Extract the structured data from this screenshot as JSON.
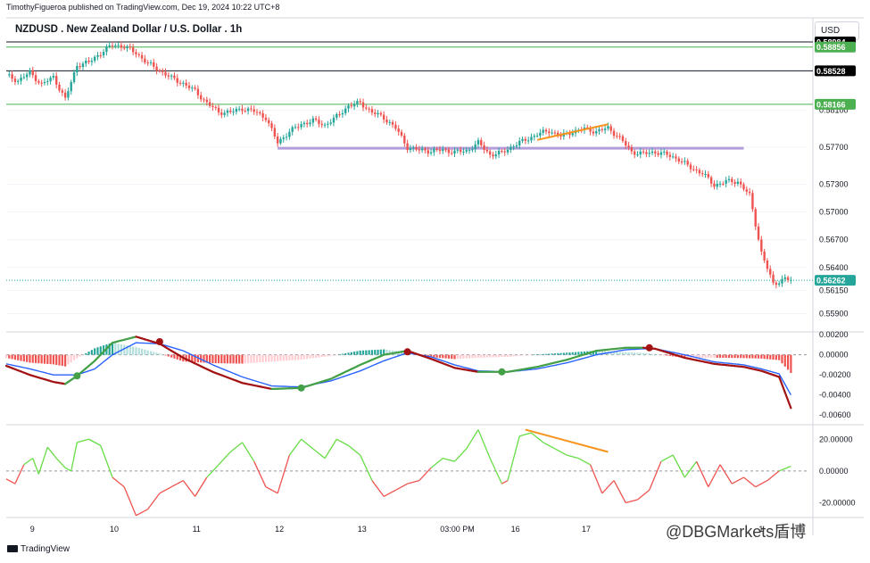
{
  "header": {
    "publisher": "TimothyFigueroa published on TradingView.com, Dec 19, 2024 10:22 UTC+8",
    "symbol_title": "NZDUSD . New Zealand Dollar / U.S. Dollar . 1h",
    "currency": "USD"
  },
  "footer": {
    "brand": "TradingView"
  },
  "watermark": {
    "text": "@DBGMarkets盾博"
  },
  "colors": {
    "up": "#26a69a",
    "down": "#ef5350",
    "support": "#b39ddb",
    "trend": "#f7931a",
    "green_level": "#4caf50",
    "black_level": "#131722",
    "blue_line": "#2962ff",
    "price_dotted": "#26a69a",
    "macd_fast_up": "#43a047",
    "macd_fast_down": "#a31212"
  },
  "chart_data": [
    {
      "type": "candlestick",
      "panel": "price",
      "symbol": "NZDUSD",
      "timeframe": "1h",
      "x_labels": [
        "9",
        "10",
        "11",
        "12",
        "13",
        "03:00 PM",
        "16",
        "17",
        "1"
      ],
      "y_ticks": [
        0.581,
        0.577,
        0.573,
        0.57,
        0.567,
        0.564,
        0.5615,
        0.559
      ],
      "y_tick_labels": [
        "0.58100",
        "0.57700",
        "0.57300",
        "0.57000",
        "0.56700",
        "0.56400",
        "0.56150",
        "0.55900"
      ],
      "ylim": [
        0.5578,
        0.5885
      ],
      "level_tags": [
        {
          "label": "0.58984",
          "value": 0.5884,
          "style": "black"
        },
        {
          "label": "0.58856",
          "value": 0.58785,
          "style": "green"
        },
        {
          "label": "0.58528",
          "value": 0.58528,
          "style": "black"
        },
        {
          "label": "0.58166",
          "value": 0.58166,
          "style": "green"
        },
        {
          "label": "0.56262",
          "value": 0.56262,
          "style": "last"
        }
      ],
      "support_line": {
        "value": 0.5769
      },
      "close_path": [
        [
          0,
          0.5848
        ],
        [
          4,
          0.5842
        ],
        [
          8,
          0.5851
        ],
        [
          12,
          0.5838
        ],
        [
          16,
          0.5846
        ],
        [
          20,
          0.5822
        ],
        [
          24,
          0.5859
        ],
        [
          28,
          0.5862
        ],
        [
          32,
          0.5872
        ],
        [
          36,
          0.5881
        ],
        [
          40,
          0.5879
        ],
        [
          44,
          0.5872
        ],
        [
          48,
          0.5861
        ],
        [
          52,
          0.5853
        ],
        [
          56,
          0.5845
        ],
        [
          60,
          0.5839
        ],
        [
          64,
          0.5831
        ],
        [
          68,
          0.5818
        ],
        [
          72,
          0.5808
        ],
        [
          76,
          0.5808
        ],
        [
          80,
          0.5812
        ],
        [
          84,
          0.5809
        ],
        [
          88,
          0.5802
        ],
        [
          92,
          0.5775
        ],
        [
          96,
          0.5787
        ],
        [
          100,
          0.5795
        ],
        [
          104,
          0.5799
        ],
        [
          108,
          0.5794
        ],
        [
          112,
          0.5803
        ],
        [
          116,
          0.5815
        ],
        [
          120,
          0.5818
        ],
        [
          124,
          0.5808
        ],
        [
          128,
          0.5802
        ],
        [
          132,
          0.5791
        ],
        [
          136,
          0.577
        ],
        [
          140,
          0.5767
        ],
        [
          144,
          0.5766
        ],
        [
          148,
          0.5767
        ],
        [
          152,
          0.5765
        ],
        [
          156,
          0.5766
        ],
        [
          160,
          0.5775
        ],
        [
          164,
          0.5762
        ],
        [
          168,
          0.5764
        ],
        [
          172,
          0.5772
        ],
        [
          176,
          0.5778
        ],
        [
          180,
          0.5784
        ],
        [
          184,
          0.5788
        ],
        [
          188,
          0.5782
        ],
        [
          192,
          0.5787
        ],
        [
          196,
          0.579
        ],
        [
          200,
          0.5787
        ],
        [
          204,
          0.5791
        ],
        [
          208,
          0.578
        ],
        [
          212,
          0.5765
        ],
        [
          216,
          0.5763
        ],
        [
          220,
          0.5765
        ],
        [
          224,
          0.5762
        ],
        [
          228,
          0.5757
        ],
        [
          232,
          0.5748
        ],
        [
          236,
          0.5742
        ],
        [
          240,
          0.5729
        ],
        [
          244,
          0.5733
        ],
        [
          248,
          0.5733
        ],
        [
          252,
          0.5718
        ],
        [
          256,
          0.5656
        ],
        [
          260,
          0.5622
        ],
        [
          264,
          0.5628
        ],
        [
          266,
          0.5626
        ]
      ],
      "trendline": {
        "from": [
          180,
          0.5778
        ],
        "to": [
          204,
          0.5795
        ]
      }
    },
    {
      "type": "histogram_with_lines",
      "panel": "macd",
      "y_tick_labels": [
        "0.00200",
        "0.00000",
        "-0.00200",
        "-0.00400",
        "-0.00600"
      ],
      "ylim": [
        -0.0066,
        0.0021
      ],
      "fast_line": [
        [
          0,
          -0.0011
        ],
        [
          8,
          -0.002
        ],
        [
          16,
          -0.0027
        ],
        [
          20,
          -0.0029
        ],
        [
          24,
          -0.0021
        ],
        [
          30,
          -0.0006
        ],
        [
          36,
          0.0012
        ],
        [
          44,
          0.0018
        ],
        [
          52,
          0.0011
        ],
        [
          60,
          -0.0003
        ],
        [
          70,
          -0.0017
        ],
        [
          80,
          -0.0028
        ],
        [
          90,
          -0.0034
        ],
        [
          100,
          -0.0033
        ],
        [
          110,
          -0.0024
        ],
        [
          120,
          -0.001
        ],
        [
          128,
          0.0
        ],
        [
          136,
          0.0004
        ],
        [
          144,
          -0.0004
        ],
        [
          152,
          -0.0013
        ],
        [
          160,
          -0.0017
        ],
        [
          170,
          -0.0017
        ],
        [
          180,
          -0.0012
        ],
        [
          190,
          -0.0005
        ],
        [
          200,
          0.0004
        ],
        [
          210,
          0.0007
        ],
        [
          216,
          0.0007
        ],
        [
          220,
          0.0006
        ],
        [
          230,
          -0.0003
        ],
        [
          240,
          -0.0009
        ],
        [
          250,
          -0.0012
        ],
        [
          256,
          -0.0016
        ],
        [
          262,
          -0.0022
        ],
        [
          266,
          -0.0053
        ]
      ],
      "slow_line": [
        [
          0,
          -0.0009
        ],
        [
          8,
          -0.0014
        ],
        [
          16,
          -0.002
        ],
        [
          24,
          -0.002
        ],
        [
          30,
          -0.0014
        ],
        [
          36,
          0.0
        ],
        [
          44,
          0.0012
        ],
        [
          52,
          0.0011
        ],
        [
          60,
          0.0004
        ],
        [
          70,
          -0.001
        ],
        [
          80,
          -0.0022
        ],
        [
          90,
          -0.0031
        ],
        [
          100,
          -0.0032
        ],
        [
          110,
          -0.0026
        ],
        [
          120,
          -0.0016
        ],
        [
          128,
          -0.0006
        ],
        [
          136,
          0.0002
        ],
        [
          144,
          -0.0002
        ],
        [
          152,
          -0.001
        ],
        [
          160,
          -0.0016
        ],
        [
          170,
          -0.0017
        ],
        [
          180,
          -0.0014
        ],
        [
          190,
          -0.0008
        ],
        [
          200,
          0.0
        ],
        [
          210,
          0.0005
        ],
        [
          216,
          0.0006
        ],
        [
          220,
          0.0006
        ],
        [
          230,
          0.0
        ],
        [
          240,
          -0.0007
        ],
        [
          250,
          -0.001
        ],
        [
          256,
          -0.0014
        ],
        [
          262,
          -0.0019
        ],
        [
          266,
          -0.004
        ]
      ],
      "signal_points": [
        {
          "x": 24,
          "value": -0.0021,
          "kind": "bull"
        },
        {
          "x": 52,
          "value": 0.0013,
          "kind": "bear"
        },
        {
          "x": 100,
          "value": -0.0033,
          "kind": "bull"
        },
        {
          "x": 136,
          "value": 0.0003,
          "kind": "bear"
        },
        {
          "x": 168,
          "value": -0.0017,
          "kind": "bull"
        },
        {
          "x": 218,
          "value": 0.0007,
          "kind": "bear"
        }
      ]
    },
    {
      "type": "oscillator",
      "panel": "oscillator",
      "y_tick_labels": [
        "20.00000",
        "0.00000",
        "-20.00000"
      ],
      "ylim": [
        -27,
        28
      ],
      "points": [
        [
          0,
          -5
        ],
        [
          3,
          -8
        ],
        [
          6,
          4
        ],
        [
          9,
          8
        ],
        [
          11,
          -2
        ],
        [
          14,
          15
        ],
        [
          17,
          8
        ],
        [
          20,
          2
        ],
        [
          22,
          0
        ],
        [
          24,
          18
        ],
        [
          28,
          20
        ],
        [
          32,
          16
        ],
        [
          36,
          -4
        ],
        [
          40,
          -10
        ],
        [
          44,
          -28
        ],
        [
          48,
          -24
        ],
        [
          52,
          -14
        ],
        [
          56,
          -10
        ],
        [
          60,
          -6
        ],
        [
          64,
          -16
        ],
        [
          68,
          -4
        ],
        [
          72,
          4
        ],
        [
          76,
          12
        ],
        [
          80,
          18
        ],
        [
          84,
          6
        ],
        [
          88,
          -10
        ],
        [
          92,
          -14
        ],
        [
          96,
          10
        ],
        [
          100,
          20
        ],
        [
          104,
          14
        ],
        [
          108,
          8
        ],
        [
          112,
          20
        ],
        [
          116,
          16
        ],
        [
          120,
          10
        ],
        [
          124,
          -6
        ],
        [
          128,
          -16
        ],
        [
          132,
          -12
        ],
        [
          136,
          -8
        ],
        [
          140,
          -6
        ],
        [
          144,
          2
        ],
        [
          148,
          8
        ],
        [
          152,
          6
        ],
        [
          156,
          14
        ],
        [
          160,
          26
        ],
        [
          164,
          8
        ],
        [
          168,
          -8
        ],
        [
          170,
          -6
        ],
        [
          174,
          22
        ],
        [
          178,
          24
        ],
        [
          182,
          18
        ],
        [
          186,
          14
        ],
        [
          190,
          10
        ],
        [
          194,
          8
        ],
        [
          198,
          4
        ],
        [
          202,
          -14
        ],
        [
          206,
          -6
        ],
        [
          210,
          -20
        ],
        [
          214,
          -18
        ],
        [
          218,
          -12
        ],
        [
          222,
          6
        ],
        [
          226,
          10
        ],
        [
          230,
          -4
        ],
        [
          234,
          6
        ],
        [
          238,
          -10
        ],
        [
          242,
          4
        ],
        [
          246,
          -8
        ],
        [
          250,
          -4
        ],
        [
          254,
          -10
        ],
        [
          258,
          -6
        ],
        [
          262,
          0
        ],
        [
          266,
          3
        ]
      ],
      "trendline": {
        "from": [
          176,
          26
        ],
        "to": [
          204,
          12
        ]
      }
    }
  ]
}
